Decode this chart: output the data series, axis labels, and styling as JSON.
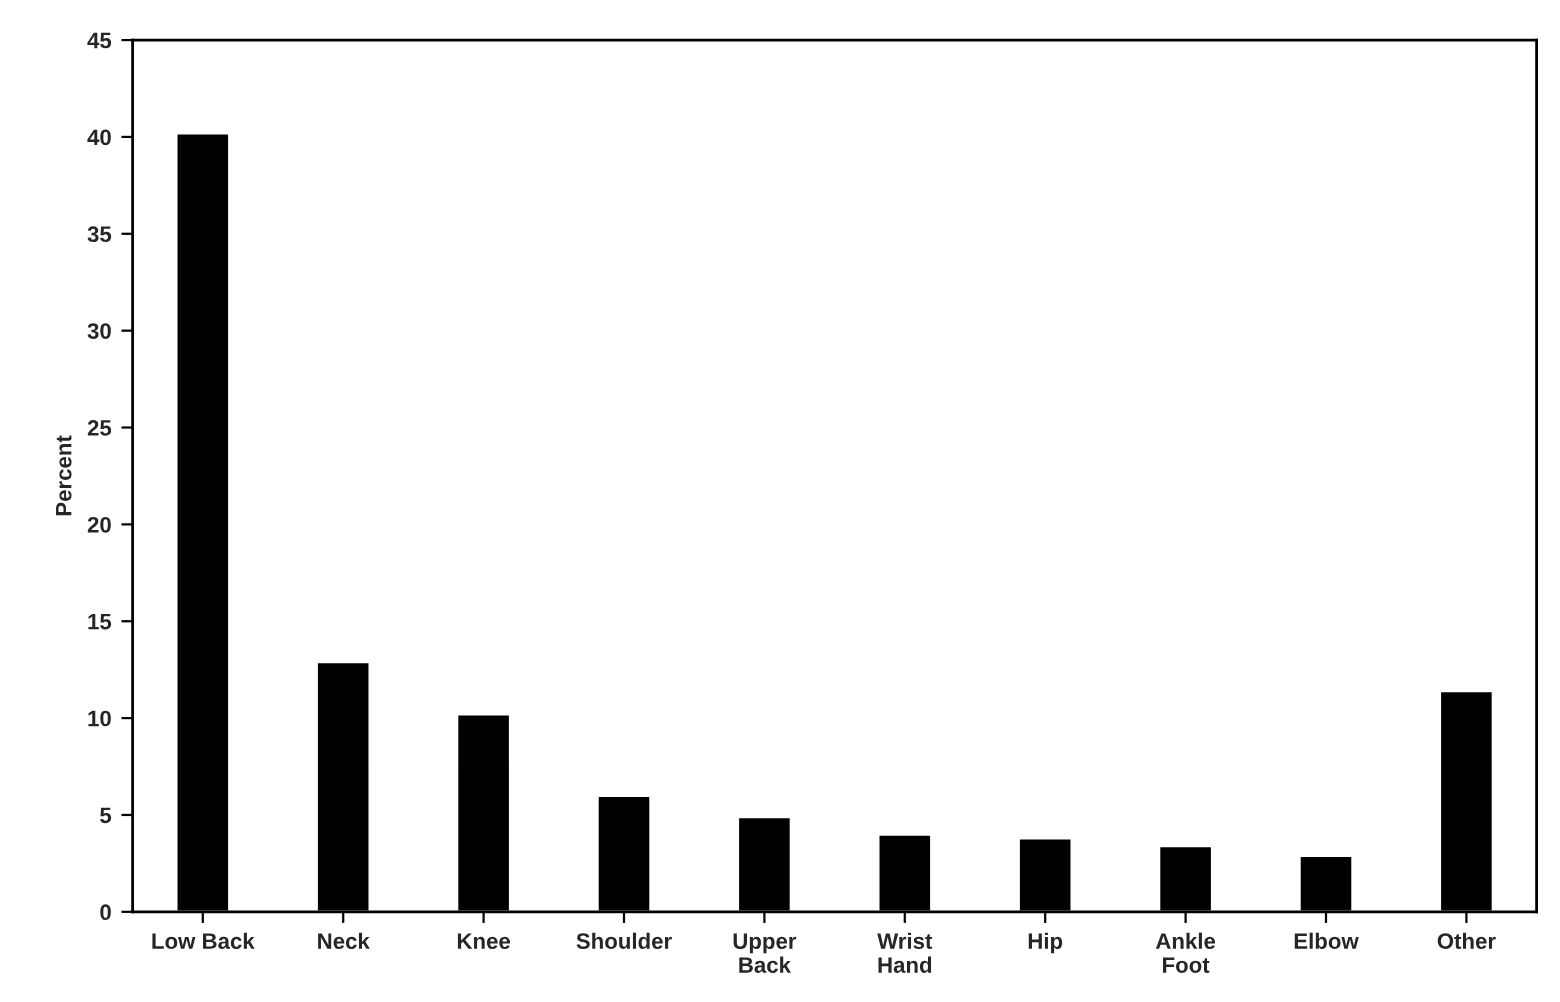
{
  "chart_data": {
    "type": "bar",
    "ylabel": "Percent",
    "categories": [
      "Low Back",
      "Neck",
      "Knee",
      "Shoulder",
      "Upper\nBack",
      "Wrist\nHand",
      "Hip",
      "Ankle\nFoot",
      "Elbow",
      "Other"
    ],
    "values": [
      40.2,
      12.9,
      10.2,
      6.0,
      4.9,
      4.0,
      3.8,
      3.4,
      2.9,
      11.4
    ],
    "color": "#000000",
    "ylim": [
      0,
      45
    ],
    "yticks": [
      0,
      5,
      10,
      15,
      20,
      25,
      30,
      35,
      40,
      45
    ],
    "grid": false
  }
}
